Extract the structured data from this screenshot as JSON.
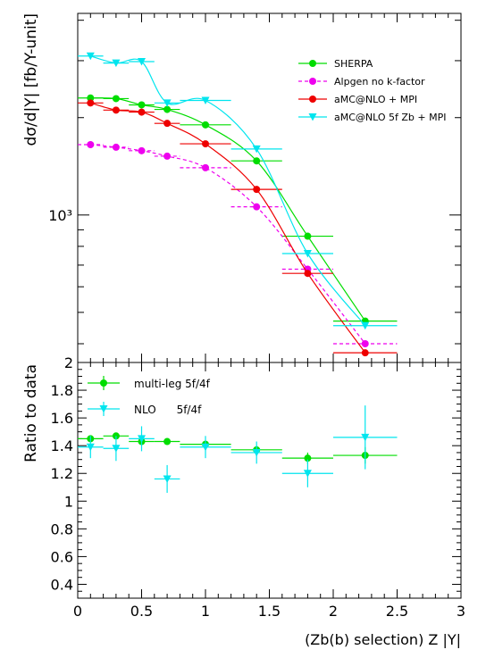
{
  "chart_data": [
    {
      "type": "line",
      "panel": "top",
      "ylabel": "dσ/d|Y| [fb/Y-unit]",
      "yscale": "log",
      "ylim": [
        350,
        4200
      ],
      "xlim": [
        0,
        3
      ],
      "ytick_labels": [
        "10³"
      ],
      "series": [
        {
          "name": "SHERPA",
          "color": "#00dd00",
          "marker": "circle",
          "line": "solid",
          "smooth_curve": true,
          "x": [
            0.1,
            0.3,
            0.5,
            0.7,
            1.0,
            1.4,
            1.8,
            2.25
          ],
          "y": [
            2300,
            2290,
            2190,
            2120,
            1900,
            1470,
            860,
            470
          ],
          "xerr": [
            0.1,
            0.1,
            0.1,
            0.1,
            0.2,
            0.2,
            0.2,
            0.25
          ]
        },
        {
          "name": "Alpgen no k-factor",
          "color": "#ee00ee",
          "marker": "circle",
          "line": "dashed",
          "smooth_curve": true,
          "x": [
            0.1,
            0.3,
            0.5,
            0.7,
            1.0,
            1.4,
            1.8,
            2.25
          ],
          "y": [
            1650,
            1620,
            1580,
            1520,
            1400,
            1060,
            680,
            400
          ],
          "xerr": [
            0.1,
            0.1,
            0.1,
            0.1,
            0.2,
            0.2,
            0.2,
            0.25
          ]
        },
        {
          "name": "aMC@NLO + MPI",
          "color": "#ee0000",
          "marker": "circle",
          "line": "solid",
          "smooth_curve": true,
          "x": [
            0.1,
            0.3,
            0.5,
            0.7,
            1.0,
            1.4,
            1.8,
            2.25
          ],
          "y": [
            2220,
            2110,
            2080,
            1920,
            1660,
            1200,
            660,
            375
          ],
          "xerr": [
            0.1,
            0.1,
            0.1,
            0.1,
            0.2,
            0.2,
            0.2,
            0.25
          ]
        },
        {
          "name": "aMC@NLO 5f Zb + MPI",
          "color": "#00e5ee",
          "marker": "triangle-down",
          "line": "solid",
          "smooth_curve": true,
          "x": [
            0.1,
            0.3,
            0.5,
            0.7,
            1.0,
            1.4,
            1.8,
            2.25
          ],
          "y": [
            3100,
            2950,
            2980,
            2220,
            2260,
            1600,
            760,
            455
          ],
          "xerr": [
            0.1,
            0.1,
            0.1,
            0.1,
            0.2,
            0.2,
            0.2,
            0.25
          ]
        }
      ]
    },
    {
      "type": "scatter",
      "panel": "bottom",
      "ylabel": "Ratio to data",
      "xlabel": "(Zb(b) selection) Z |Y|",
      "ylim": [
        0.3,
        2.0
      ],
      "xlim": [
        0,
        3
      ],
      "xticks": [
        0,
        0.5,
        1,
        1.5,
        2,
        2.5,
        3
      ],
      "xtick_labels": [
        "0",
        "0.5",
        "1",
        "1.5",
        "2",
        "2.5",
        "3"
      ],
      "yticks": [
        0.4,
        0.6,
        0.8,
        1.0,
        1.2,
        1.4,
        1.6,
        1.8,
        2.0
      ],
      "ytick_labels": [
        "0.4",
        "0.6",
        "0.8",
        "1",
        "1.2",
        "1.4",
        "1.6",
        "1.8",
        "2"
      ],
      "series": [
        {
          "name": "multi-leg 5f/4f",
          "color": "#00dd00",
          "marker": "circle",
          "x": [
            0.1,
            0.3,
            0.5,
            0.7,
            1.0,
            1.4,
            1.8,
            2.25
          ],
          "y": [
            1.45,
            1.47,
            1.43,
            1.43,
            1.41,
            1.37,
            1.31,
            1.33
          ],
          "xerr": [
            0.1,
            0.1,
            0.1,
            0.1,
            0.2,
            0.2,
            0.2,
            0.25
          ],
          "yerr": [
            0.02,
            0.02,
            0.02,
            0.02,
            0.03,
            0.03,
            0.04,
            0.06
          ]
        },
        {
          "name": "NLO      5f/4f",
          "color": "#00e5ee",
          "marker": "triangle-down",
          "x": [
            0.1,
            0.3,
            0.5,
            0.7,
            1.0,
            1.4,
            1.8,
            2.25
          ],
          "y": [
            1.39,
            1.38,
            1.45,
            1.16,
            1.39,
            1.35,
            1.2,
            1.46
          ],
          "xerr": [
            0.1,
            0.1,
            0.1,
            0.1,
            0.2,
            0.2,
            0.2,
            0.25
          ],
          "yerr": [
            0.08,
            0.09,
            0.09,
            0.1,
            0.08,
            0.08,
            0.1,
            0.23
          ]
        }
      ]
    }
  ]
}
